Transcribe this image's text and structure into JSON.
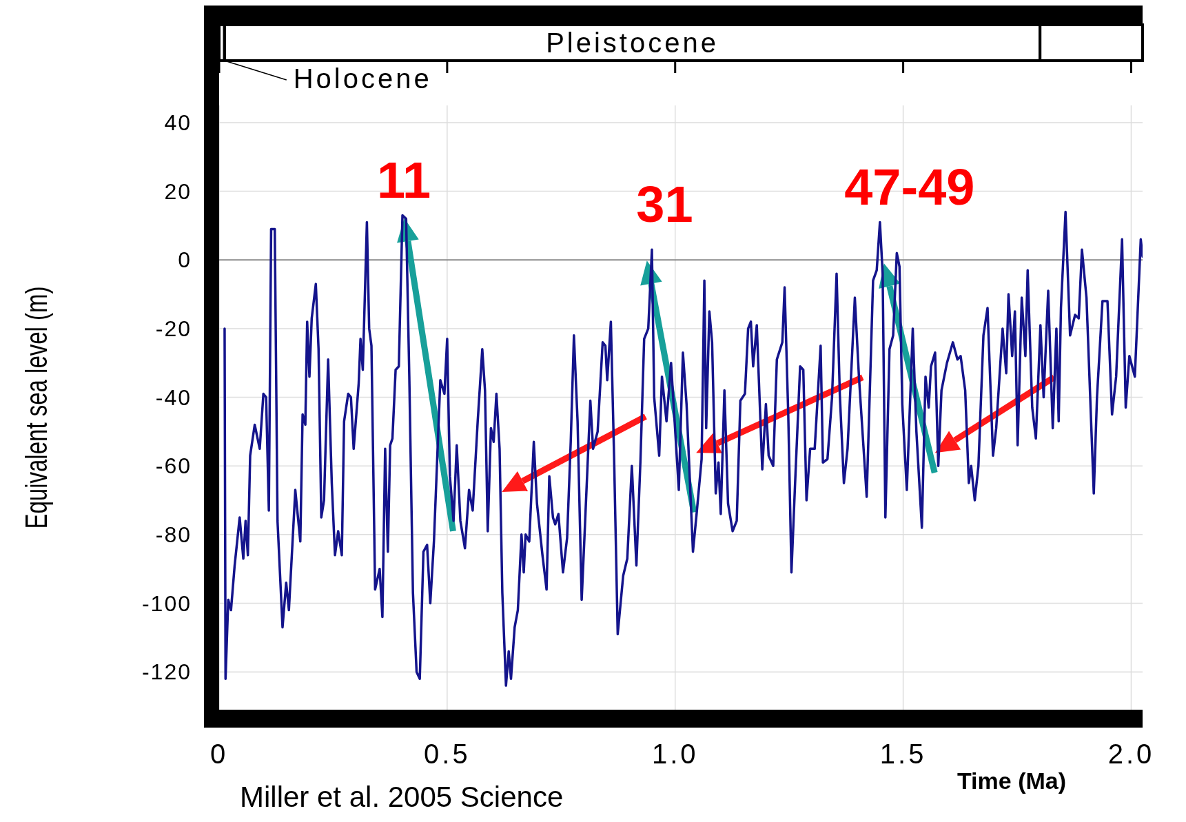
{
  "chart_data": {
    "type": "line",
    "xlabel": "Time (Ma)",
    "ylabel": "Equivalent sea level (m)",
    "annotations": [
      "11",
      "31",
      "47-49",
      "Miller et al. 2005 Science",
      "Pleistocene",
      "Holocene"
    ],
    "xlim": [
      0,
      2.025
    ],
    "ylim": [
      -131,
      45
    ],
    "xticks": [
      0,
      0.5,
      {
        "value": 1,
        "label": "1.0"
      },
      1.5,
      {
        "value": 2,
        "label": "2.0"
      }
    ],
    "yticks": [
      -120,
      -100,
      -80,
      -60,
      -40,
      -20,
      0,
      20,
      40
    ],
    "grid": true,
    "ref_lines": [
      {
        "axis": "y",
        "value": 0,
        "color": "#666666"
      }
    ],
    "series": [
      {
        "color": "#14148c",
        "x": [
          0.012,
          0.014,
          0.02,
          0.026,
          0.034,
          0.045,
          0.053,
          0.058,
          0.063,
          0.068,
          0.078,
          0.089,
          0.097,
          0.103,
          0.109,
          0.114,
          0.122,
          0.128,
          0.139,
          0.147,
          0.153,
          0.167,
          0.178,
          0.183,
          0.189,
          0.193,
          0.198,
          0.203,
          0.212,
          0.218,
          0.224,
          0.23,
          0.239,
          0.247,
          0.254,
          0.261,
          0.269,
          0.274,
          0.283,
          0.289,
          0.295,
          0.306,
          0.31,
          0.315,
          0.324,
          0.329,
          0.334,
          0.342,
          0.352,
          0.358,
          0.364,
          0.37,
          0.375,
          0.38,
          0.387,
          0.394,
          0.402,
          0.41,
          0.417,
          0.425,
          0.433,
          0.44,
          0.448,
          0.456,
          0.463,
          0.471,
          0.485,
          0.494,
          0.5,
          0.506,
          0.514,
          0.521,
          0.529,
          0.539,
          0.548,
          0.556,
          0.567,
          0.577,
          0.583,
          0.589,
          0.596,
          0.602,
          0.608,
          0.615,
          0.621,
          0.629,
          0.635,
          0.64,
          0.648,
          0.655,
          0.663,
          0.668,
          0.672,
          0.68,
          0.69,
          0.697,
          0.709,
          0.718,
          0.724,
          0.732,
          0.737,
          0.744,
          0.754,
          0.763,
          0.771,
          0.778,
          0.786,
          0.795,
          0.801,
          0.814,
          0.82,
          0.83,
          0.841,
          0.847,
          0.851,
          0.859,
          0.866,
          0.874,
          0.886,
          0.895,
          0.905,
          0.915,
          0.924,
          0.932,
          0.941,
          0.949,
          0.954,
          0.965,
          0.971,
          0.981,
          0.991,
          1.008,
          1.017,
          1.025,
          1.039,
          1.047,
          1.058,
          1.064,
          1.068,
          1.075,
          1.081,
          1.089,
          1.095,
          1.1,
          1.108,
          1.116,
          1.126,
          1.135,
          1.143,
          1.153,
          1.16,
          1.166,
          1.171,
          1.179,
          1.191,
          1.199,
          1.205,
          1.215,
          1.223,
          1.235,
          1.24,
          1.248,
          1.255,
          1.263,
          1.274,
          1.281,
          1.288,
          1.296,
          1.306,
          1.319,
          1.324,
          1.334,
          1.344,
          1.354,
          1.361,
          1.37,
          1.378,
          1.394,
          1.403,
          1.42,
          1.434,
          1.442,
          1.449,
          1.455,
          1.461,
          1.47,
          1.478,
          1.486,
          1.492,
          1.498,
          1.508,
          1.521,
          1.529,
          1.541,
          1.549,
          1.556,
          1.561,
          1.57,
          1.577,
          1.584,
          1.596,
          1.609,
          1.619,
          1.626,
          1.636,
          1.644,
          1.649,
          1.657,
          1.665,
          1.676,
          1.685,
          1.697,
          1.704,
          1.718,
          1.726,
          1.731,
          1.739,
          1.745,
          1.751,
          1.76,
          1.768,
          1.773,
          1.783,
          1.791,
          1.801,
          1.808,
          1.818,
          1.828,
          1.836,
          1.841,
          1.846,
          1.856,
          1.866,
          1.877,
          1.885,
          1.892,
          1.902,
          1.918,
          1.925,
          1.937,
          1.948,
          1.958,
          1.967,
          1.98,
          1.988,
          1.996,
          2.008,
          2.021,
          2.025
        ],
        "values": [
          -20,
          -122,
          -99,
          -102,
          -89,
          -75,
          -87,
          -76,
          -86,
          -57,
          -48,
          -55,
          -39,
          -40,
          -73,
          9,
          9,
          -76,
          -107,
          -94,
          -102,
          -67,
          -82,
          -45,
          -48,
          -18,
          -34,
          -17,
          -7,
          -26,
          -75,
          -70,
          -29,
          -65,
          -86,
          -79,
          -86,
          -47,
          -39,
          -40,
          -55,
          -36,
          -23,
          -32,
          11,
          -20,
          -25,
          -96,
          -90,
          -104,
          -55,
          -85,
          -54,
          -52,
          -32,
          -31,
          13,
          12,
          -34,
          -97,
          -120,
          -122,
          -85,
          -83,
          -100,
          -82,
          -35,
          -39,
          -23,
          -63,
          -76,
          -54,
          -76,
          -84,
          -67,
          -73,
          -47,
          -26,
          -38,
          -79,
          -49,
          -53,
          -39,
          -55,
          -97,
          -124,
          -114,
          -122,
          -107,
          -102,
          -80,
          -91,
          -80,
          -82,
          -53,
          -71,
          -86,
          -96,
          -63,
          -75,
          -77,
          -74,
          -91,
          -81,
          -53,
          -22,
          -47,
          -99,
          -81,
          -41,
          -55,
          -50,
          -24,
          -25,
          -35,
          -18,
          -57,
          -109,
          -92,
          -87,
          -60,
          -89,
          -58,
          -23,
          -20,
          3,
          -40,
          -57,
          -34,
          -47,
          -30,
          -67,
          -27,
          -42,
          -85,
          -74,
          -58,
          -6,
          -49,
          -15,
          -24,
          -68,
          -59,
          -74,
          -38,
          -71,
          -79,
          -76,
          -41,
          -39,
          -20,
          -18,
          -31,
          -19,
          -61,
          -42,
          -57,
          -60,
          -29,
          -24,
          -8,
          -45,
          -91,
          -65,
          -31,
          -32,
          -70,
          -55,
          -55,
          -25,
          -59,
          -58,
          -40,
          -4,
          -39,
          -65,
          -55,
          -11,
          -34,
          -69,
          -6,
          -3,
          11,
          -4,
          -75,
          -26,
          -22,
          2,
          -2,
          -42,
          -67,
          -20,
          -50,
          -78,
          -34,
          -43,
          -31,
          -27,
          -60,
          -38,
          -30,
          -24,
          -29,
          -28,
          -38,
          -65,
          -60,
          -70,
          -60,
          -22,
          -14,
          -57,
          -49,
          -20,
          -33,
          -10,
          -28,
          -15,
          -54,
          -11,
          -28,
          -3,
          -43,
          -52,
          -19,
          -40,
          -9,
          -49,
          -20,
          -47,
          -14,
          14,
          -22,
          -16,
          -17,
          3,
          -11,
          -68,
          -40,
          -12,
          -12,
          -45,
          -34,
          6,
          -43,
          -28,
          -34,
          6,
          1
        ]
      }
    ]
  }
}
